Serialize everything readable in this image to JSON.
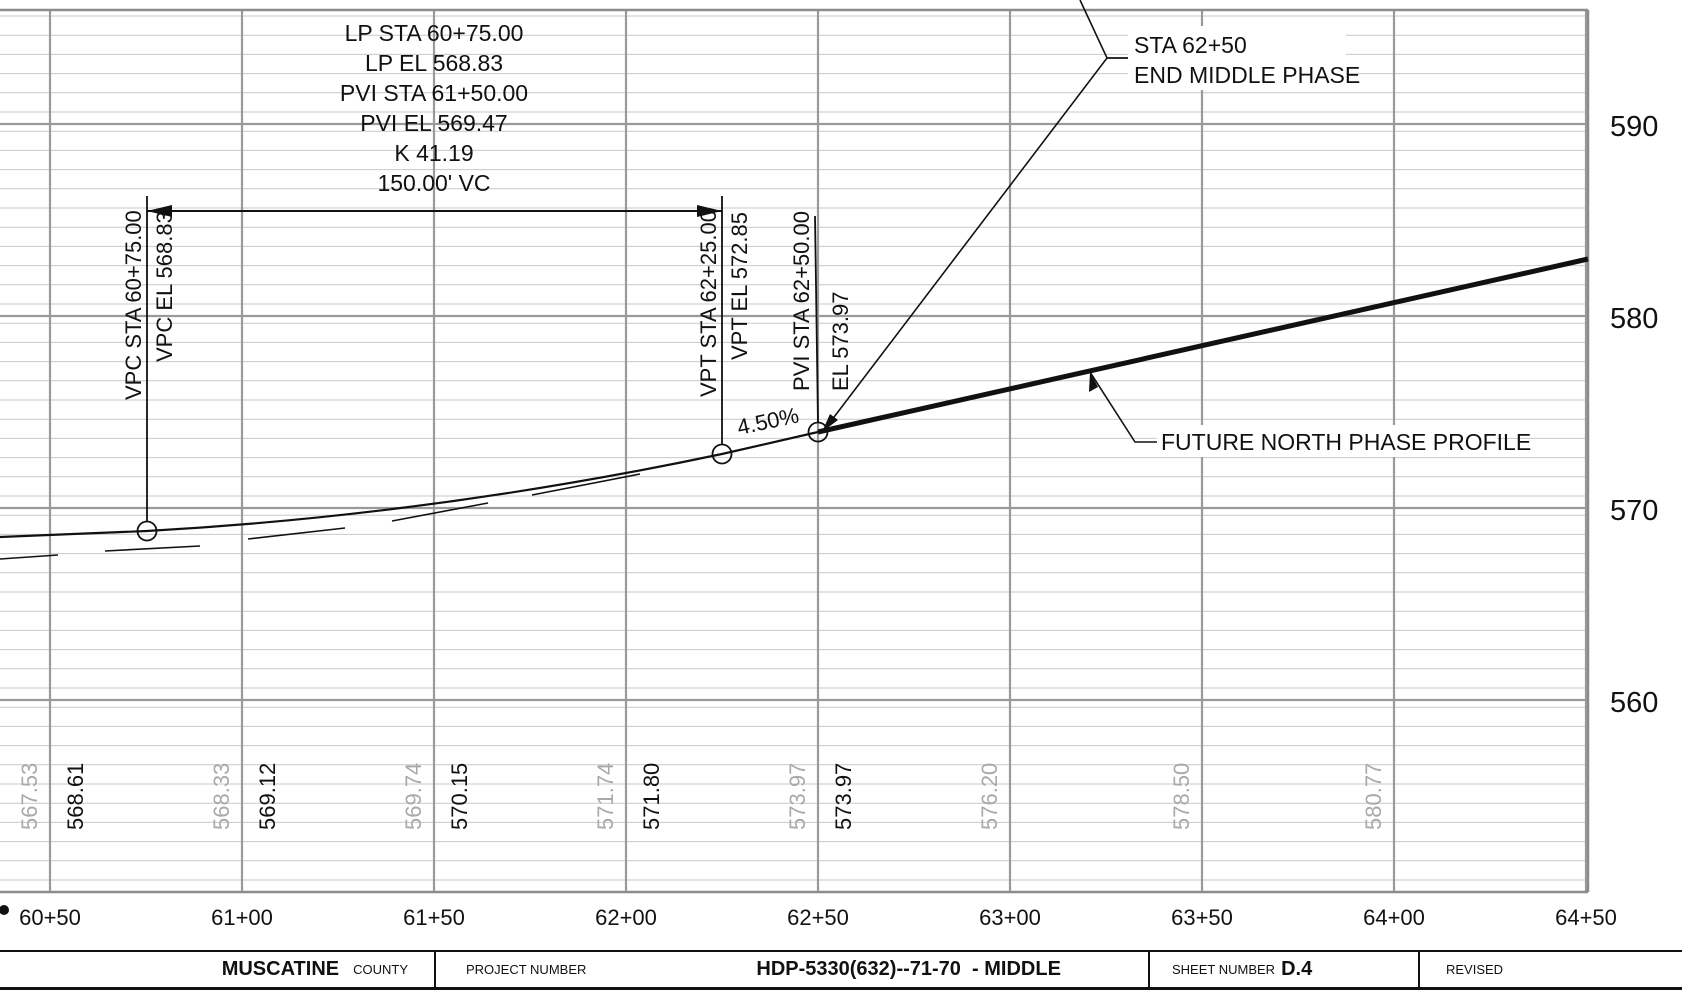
{
  "profile": {
    "station_labels": [
      "60+50",
      "61+00",
      "61+50",
      "62+00",
      "62+50",
      "63+00",
      "63+50",
      "64+00",
      "64+50"
    ],
    "elevation_labels": [
      "590",
      "580",
      "570",
      "560"
    ],
    "existing_elevations": [
      "567.53",
      "568.33",
      "569.74",
      "571.74",
      "573.97",
      "576.20",
      "578.50",
      "580.77"
    ],
    "proposed_elevations": [
      "568.61",
      "569.12",
      "570.15",
      "571.80",
      "573.97"
    ],
    "vertical_curve": {
      "lines": [
        "LP STA 60+75.00",
        "LP EL 568.83",
        "PVI STA 61+50.00",
        "PVI EL 569.47",
        "K 41.19",
        "150.00' VC"
      ]
    },
    "vpc": {
      "sta": "VPC STA 60+75.00",
      "el": "VPC EL 568.83"
    },
    "vpt": {
      "sta": "VPT STA 62+25.00",
      "el": "VPT EL 572.85"
    },
    "pvi": {
      "sta": "PVI STA 62+50.00",
      "el": "EL 573.97"
    },
    "grade": "4.50%",
    "end_phase": {
      "line1": "STA 62+50",
      "line2": "END MIDDLE PHASE"
    },
    "future_label": "FUTURE NORTH PHASE PROFILE"
  },
  "title_block": {
    "county_name": "MUSCATINE",
    "county_label": "COUNTY",
    "project_label": "PROJECT NUMBER",
    "project_number": "HDP-5330(632)--71-70  - MIDDLE",
    "sheet_label": "SHEET NUMBER",
    "sheet_number": "D.4",
    "revised_label": "REVISED"
  }
}
